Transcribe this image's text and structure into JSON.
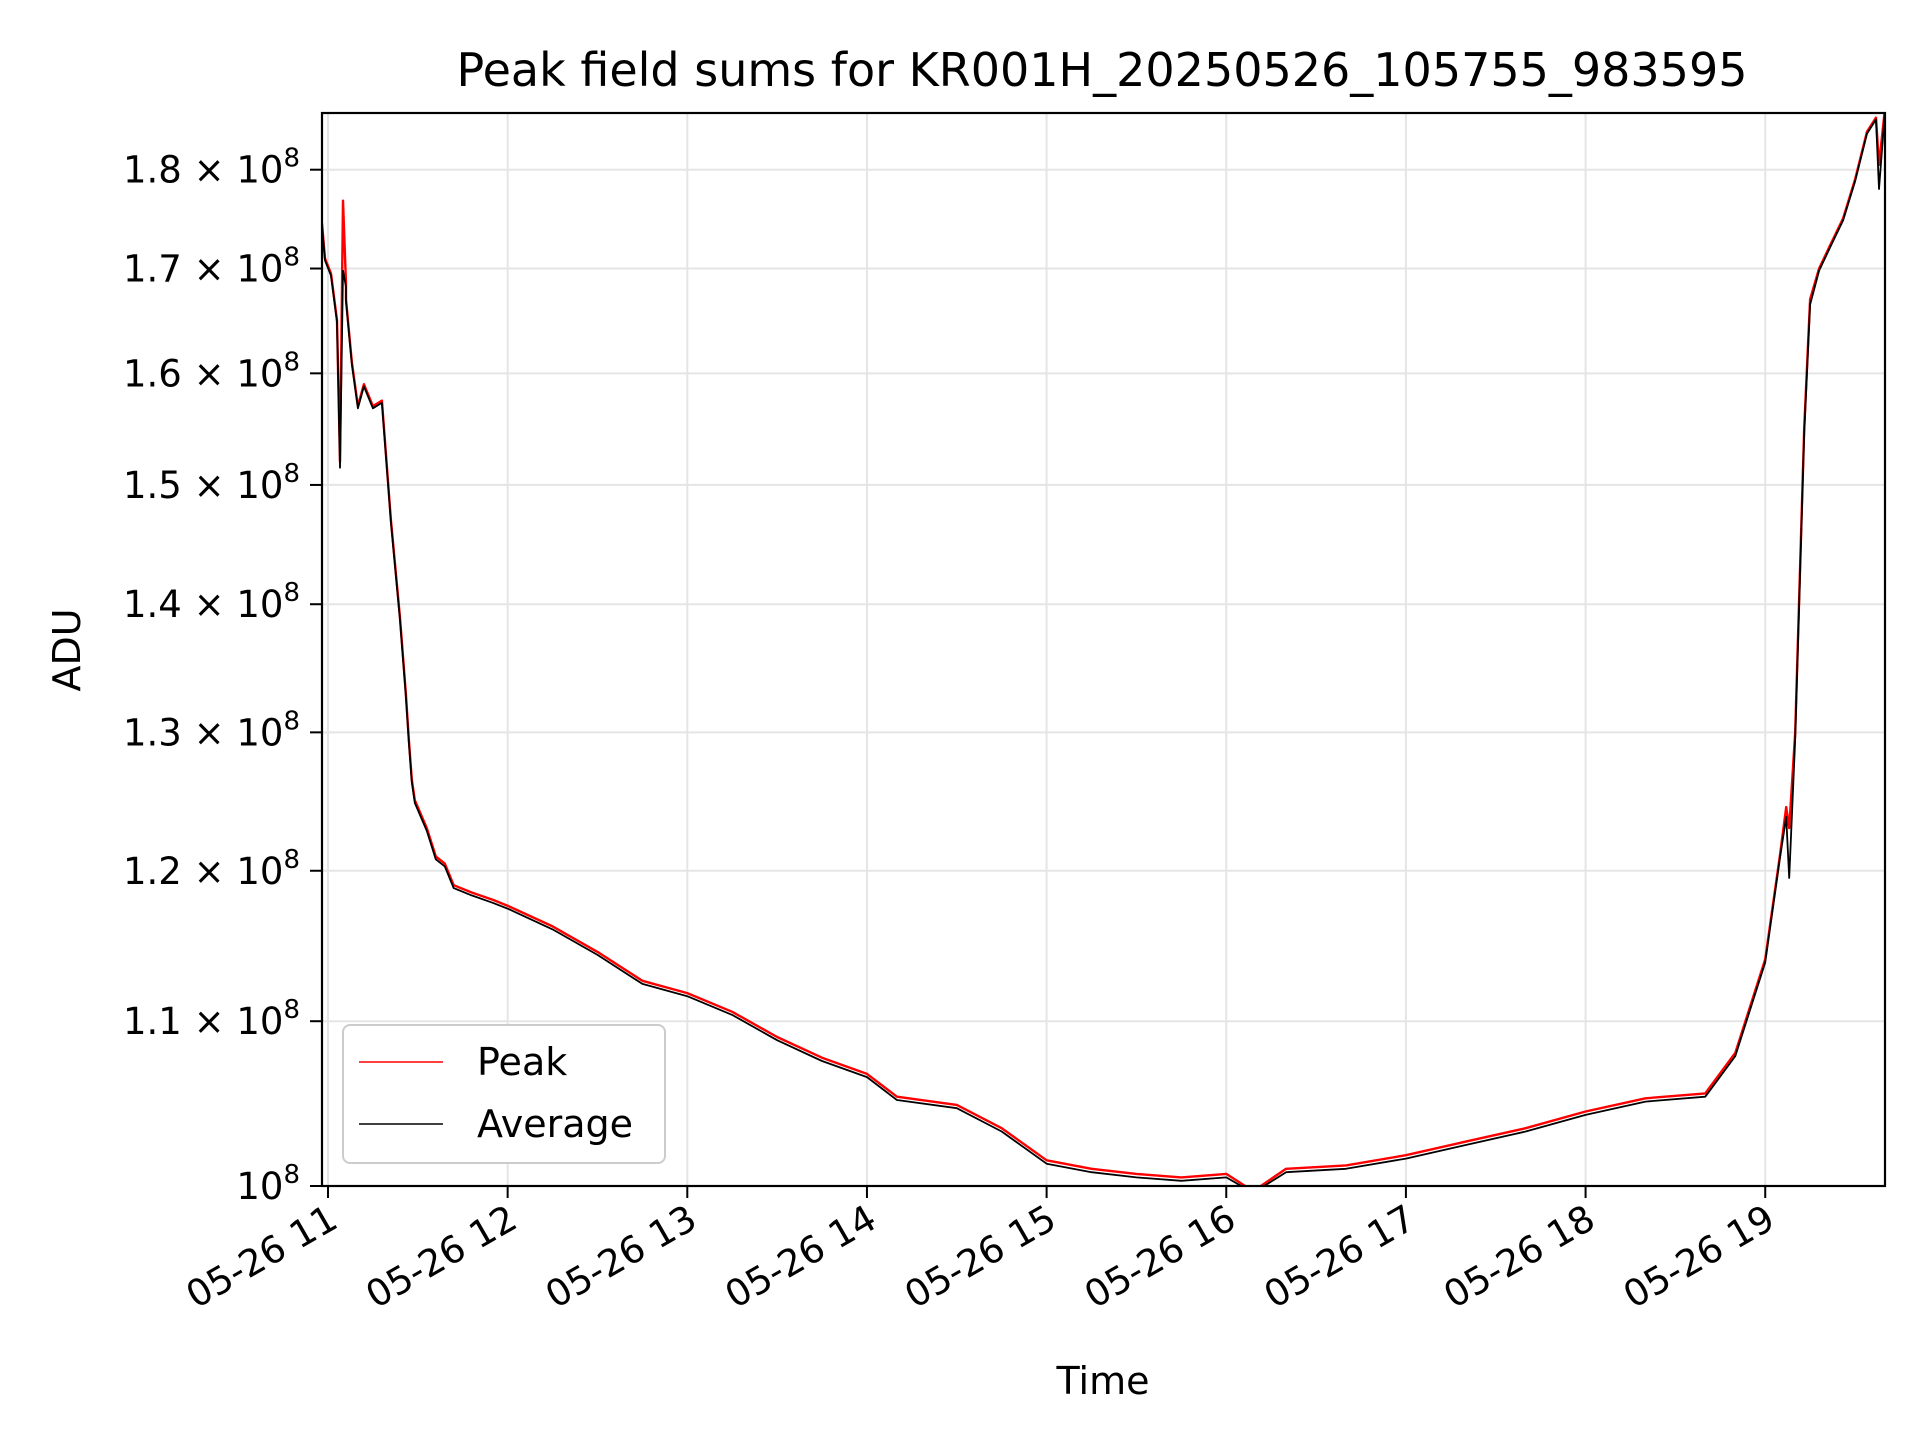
{
  "chart_data": {
    "type": "line",
    "title": "Peak field sums for KR001H_20250526_105755_983595",
    "xlabel": "Time",
    "ylabel": "ADU",
    "y_scale": "log",
    "grid": true,
    "legend_position": "lower-left",
    "xlim": [
      "2025-05-26 10:58",
      "2025-05-26 19:40"
    ],
    "ylim": [
      100000000,
      186000000
    ],
    "x_ticks": [
      {
        "value": "2025-05-26 11:00",
        "label": "05-26 11"
      },
      {
        "value": "2025-05-26 12:00",
        "label": "05-26 12"
      },
      {
        "value": "2025-05-26 13:00",
        "label": "05-26 13"
      },
      {
        "value": "2025-05-26 14:00",
        "label": "05-26 14"
      },
      {
        "value": "2025-05-26 15:00",
        "label": "05-26 15"
      },
      {
        "value": "2025-05-26 16:00",
        "label": "05-26 16"
      },
      {
        "value": "2025-05-26 17:00",
        "label": "05-26 17"
      },
      {
        "value": "2025-05-26 18:00",
        "label": "05-26 18"
      },
      {
        "value": "2025-05-26 19:00",
        "label": "05-26 19"
      }
    ],
    "y_ticks": [
      {
        "value": 100000000,
        "mant": "",
        "exp": "8"
      },
      {
        "value": 110000000,
        "mant": "1.1",
        "exp": "8"
      },
      {
        "value": 120000000,
        "mant": "1.2",
        "exp": "8"
      },
      {
        "value": 130000000,
        "mant": "1.3",
        "exp": "8"
      },
      {
        "value": 140000000,
        "mant": "1.4",
        "exp": "8"
      },
      {
        "value": 150000000,
        "mant": "1.5",
        "exp": "8"
      },
      {
        "value": 160000000,
        "mant": "1.6",
        "exp": "8"
      },
      {
        "value": 170000000,
        "mant": "1.7",
        "exp": "8"
      },
      {
        "value": 180000000,
        "mant": "1.8",
        "exp": "8"
      }
    ],
    "series": [
      {
        "name": "Peak",
        "color": "#ff0000",
        "x": [
          "2025-05-26 10:58",
          "2025-05-26 10:59",
          "2025-05-26 11:01",
          "2025-05-26 11:03",
          "2025-05-26 11:04",
          "2025-05-26 11:05",
          "2025-05-26 11:06",
          "2025-05-26 11:06",
          "2025-05-26 11:07",
          "2025-05-26 11:08",
          "2025-05-26 11:10",
          "2025-05-26 11:12",
          "2025-05-26 11:15",
          "2025-05-26 11:18",
          "2025-05-26 11:21",
          "2025-05-26 11:24",
          "2025-05-26 11:26",
          "2025-05-26 11:27",
          "2025-05-26 11:28",
          "2025-05-26 11:29",
          "2025-05-26 11:30",
          "2025-05-26 11:33",
          "2025-05-26 11:36",
          "2025-05-26 11:39",
          "2025-05-26 11:42",
          "2025-05-26 11:48",
          "2025-05-26 11:55",
          "2025-05-26 12:00",
          "2025-05-26 12:15",
          "2025-05-26 12:30",
          "2025-05-26 12:45",
          "2025-05-26 13:00",
          "2025-05-26 13:15",
          "2025-05-26 13:30",
          "2025-05-26 13:45",
          "2025-05-26 14:00",
          "2025-05-26 14:10",
          "2025-05-26 14:30",
          "2025-05-26 14:45",
          "2025-05-26 15:00",
          "2025-05-26 15:15",
          "2025-05-26 15:30",
          "2025-05-26 15:45",
          "2025-05-26 16:00",
          "2025-05-26 16:09",
          "2025-05-26 16:20",
          "2025-05-26 16:40",
          "2025-05-26 17:00",
          "2025-05-26 17:20",
          "2025-05-26 17:40",
          "2025-05-26 18:00",
          "2025-05-26 18:20",
          "2025-05-26 18:40",
          "2025-05-26 18:50",
          "2025-05-26 19:00",
          "2025-05-26 19:05",
          "2025-05-26 19:07",
          "2025-05-26 19:08",
          "2025-05-26 19:10",
          "2025-05-26 19:13",
          "2025-05-26 19:15",
          "2025-05-26 19:18",
          "2025-05-26 19:22",
          "2025-05-26 19:26",
          "2025-05-26 19:30",
          "2025-05-26 19:34",
          "2025-05-26 19:37",
          "2025-05-26 19:38",
          "2025-05-26 19:40"
        ],
        "values": [
          174500000,
          171000000,
          169500000,
          165000000,
          152000000,
          176800000,
          168500000,
          167000000,
          164000000,
          161000000,
          157000000,
          159000000,
          157000000,
          157500000,
          147000000,
          139000000,
          133000000,
          129500000,
          126500000,
          125000000,
          124500000,
          123000000,
          121000000,
          120500000,
          119000000,
          118500000,
          118000000,
          117600000,
          116200000,
          114500000,
          112600000,
          111800000,
          110600000,
          109000000,
          107700000,
          106700000,
          105300000,
          104800000,
          103400000,
          101500000,
          101000000,
          100700000,
          100500000,
          100700000,
          99700000,
          101000000,
          101200000,
          101800000,
          102600000,
          103400000,
          104400000,
          105200000,
          105500000,
          108000000,
          114000000,
          121200000,
          124500000,
          123000000,
          130000000,
          155000000,
          167000000,
          170000000,
          172500000,
          175000000,
          179000000,
          184000000,
          185500000,
          180500000,
          186500000
        ]
      },
      {
        "name": "Average",
        "color": "#000000",
        "x": [
          "2025-05-26 10:58",
          "2025-05-26 10:59",
          "2025-05-26 11:01",
          "2025-05-26 11:03",
          "2025-05-26 11:04",
          "2025-05-26 11:05",
          "2025-05-26 11:06",
          "2025-05-26 11:06",
          "2025-05-26 11:07",
          "2025-05-26 11:08",
          "2025-05-26 11:10",
          "2025-05-26 11:12",
          "2025-05-26 11:15",
          "2025-05-26 11:18",
          "2025-05-26 11:21",
          "2025-05-26 11:24",
          "2025-05-26 11:26",
          "2025-05-26 11:27",
          "2025-05-26 11:28",
          "2025-05-26 11:29",
          "2025-05-26 11:30",
          "2025-05-26 11:33",
          "2025-05-26 11:36",
          "2025-05-26 11:39",
          "2025-05-26 11:42",
          "2025-05-26 11:48",
          "2025-05-26 11:55",
          "2025-05-26 12:00",
          "2025-05-26 12:15",
          "2025-05-26 12:30",
          "2025-05-26 12:45",
          "2025-05-26 13:00",
          "2025-05-26 13:15",
          "2025-05-26 13:30",
          "2025-05-26 13:45",
          "2025-05-26 14:00",
          "2025-05-26 14:10",
          "2025-05-26 14:30",
          "2025-05-26 14:45",
          "2025-05-26 15:00",
          "2025-05-26 15:15",
          "2025-05-26 15:30",
          "2025-05-26 15:45",
          "2025-05-26 16:00",
          "2025-05-26 16:09",
          "2025-05-26 16:20",
          "2025-05-26 16:40",
          "2025-05-26 17:00",
          "2025-05-26 17:20",
          "2025-05-26 17:40",
          "2025-05-26 18:00",
          "2025-05-26 18:20",
          "2025-05-26 18:40",
          "2025-05-26 18:50",
          "2025-05-26 19:00",
          "2025-05-26 19:05",
          "2025-05-26 19:07",
          "2025-05-26 19:08",
          "2025-05-26 19:10",
          "2025-05-26 19:13",
          "2025-05-26 19:15",
          "2025-05-26 19:18",
          "2025-05-26 19:22",
          "2025-05-26 19:26",
          "2025-05-26 19:30",
          "2025-05-26 19:34",
          "2025-05-26 19:37",
          "2025-05-26 19:38",
          "2025-05-26 19:40"
        ],
        "values": [
          174200000,
          170800000,
          169300000,
          164800000,
          151500000,
          169800000,
          168200000,
          166800000,
          163800000,
          160800000,
          156800000,
          158800000,
          156800000,
          157300000,
          146800000,
          138800000,
          132800000,
          129300000,
          126300000,
          124800000,
          124300000,
          122800000,
          120800000,
          120300000,
          118800000,
          118300000,
          117800000,
          117400000,
          116000000,
          114300000,
          112400000,
          111600000,
          110400000,
          108800000,
          107500000,
          106500000,
          105100000,
          104600000,
          103200000,
          101300000,
          100800000,
          100500000,
          100300000,
          100500000,
          99600000,
          100800000,
          101000000,
          101600000,
          102400000,
          103200000,
          104200000,
          105000000,
          105300000,
          107800000,
          113800000,
          121000000,
          123800000,
          119500000,
          129500000,
          154500000,
          166500000,
          169800000,
          172300000,
          174800000,
          178800000,
          183800000,
          185300000,
          178000000,
          186300000
        ]
      }
    ]
  }
}
